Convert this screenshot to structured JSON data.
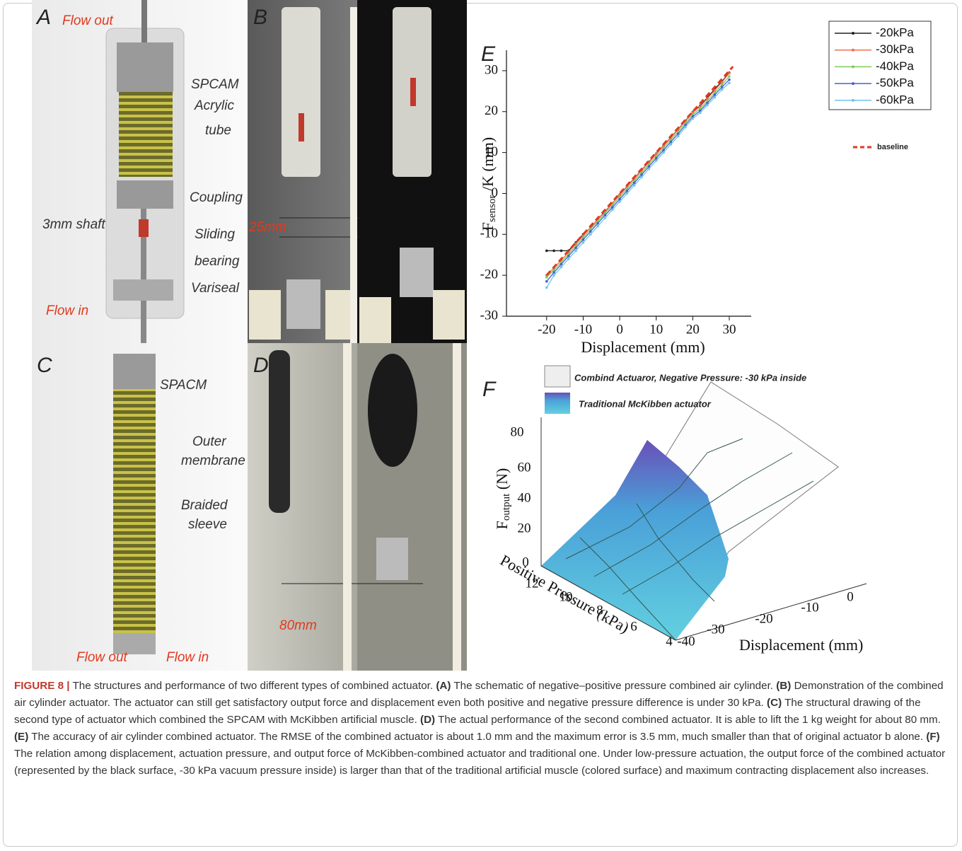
{
  "panel_a": {
    "letter": "A",
    "labels": [
      "Flow out",
      "SPCAM",
      "Acrylic",
      "tube",
      "Coupling",
      "3mm shaft",
      "Sliding",
      "bearing",
      "Variseal",
      "Flow in"
    ]
  },
  "panel_b": {
    "letter": "B",
    "labels": [
      "25mm"
    ]
  },
  "panel_c": {
    "letter": "C",
    "labels": [
      "SPACM",
      "Outer",
      "membrane",
      "Braided",
      "sleeve",
      "Flow out",
      "Flow in"
    ]
  },
  "panel_d": {
    "letter": "D",
    "labels": [
      "80mm"
    ]
  },
  "panel_e": {
    "letter": "E"
  },
  "chart_data": {
    "type": "line",
    "x": [
      -20,
      -18,
      -16,
      -14,
      -12,
      -10,
      -8,
      -6,
      -4,
      -2,
      0,
      2,
      4,
      6,
      8,
      10,
      12,
      14,
      16,
      18,
      20,
      22,
      24,
      26,
      28,
      30
    ],
    "series": [
      {
        "name": "-20kPa",
        "color": "#222222",
        "values": [
          -14,
          -14,
          -14,
          -14,
          -12,
          -10,
          -8.4,
          -6.3,
          -4.4,
          -2.4,
          -0.3,
          1.7,
          3.7,
          5.7,
          7.7,
          9.7,
          11.7,
          13.7,
          15.7,
          17.8,
          19.9,
          21.4,
          23.4,
          25.5,
          27.4,
          29.5
        ]
      },
      {
        "name": "-30kPa",
        "color": "#f07050",
        "values": [
          -20,
          -18.2,
          -16.3,
          -14.3,
          -12.3,
          -10.3,
          -8.3,
          -6.3,
          -4.3,
          -2.4,
          -0.4,
          1.6,
          3.6,
          5.6,
          7.6,
          9.6,
          11.6,
          13.6,
          15.6,
          17.7,
          19.8,
          21.2,
          23.2,
          25.2,
          27.2,
          29.4
        ]
      },
      {
        "name": "-40kPa",
        "color": "#7ecb5a",
        "values": [
          -20.5,
          -18.7,
          -16.8,
          -14.8,
          -12.8,
          -10.8,
          -8.8,
          -6.8,
          -4.8,
          -2.9,
          -0.9,
          1.1,
          3.1,
          5.1,
          7.1,
          9.1,
          11.1,
          13.1,
          15.1,
          17.2,
          19.3,
          20.7,
          22.6,
          24.6,
          26.6,
          28.6
        ]
      },
      {
        "name": "-50kPa",
        "color": "#4a5fd0",
        "values": [
          -21.5,
          -19.3,
          -17.3,
          -15.3,
          -13.3,
          -11.3,
          -9.3,
          -7.3,
          -5.3,
          -3.4,
          -1.4,
          0.6,
          2.6,
          4.6,
          6.6,
          8.6,
          10.6,
          12.6,
          14.6,
          16.7,
          18.8,
          20.2,
          22.1,
          24.1,
          26.0,
          27.8
        ]
      },
      {
        "name": "-60kPa",
        "color": "#6cc6ee",
        "values": [
          -23,
          -20,
          -18,
          -16,
          -14,
          -12,
          -10,
          -8,
          -6,
          -4,
          -2,
          0,
          2,
          4,
          6,
          8,
          10,
          12,
          14,
          16.2,
          18.3,
          19.7,
          21.6,
          23.5,
          25.4,
          27.0
        ]
      },
      {
        "name": "baseline",
        "color": "#e03a1e",
        "dashed": true,
        "x": [
          -20,
          31
        ],
        "values": [
          -20,
          31
        ]
      }
    ],
    "xlabel": "Displacement (mm)",
    "ylabel": {
      "main": "F",
      "sub": "sensor",
      "rest": " /K (mm)"
    },
    "xlim": [
      -31,
      36
    ],
    "ylim": [
      -30,
      35
    ],
    "xticks": [
      -20,
      -10,
      0,
      10,
      20,
      30
    ],
    "yticks": [
      -30,
      -20,
      -10,
      0,
      10,
      20,
      30
    ],
    "grid": false,
    "legend": "upper right"
  },
  "panel_f": {
    "letter": "F",
    "legend": [
      "Combind Actuaror, Negative Pressure: -30 kPa inside",
      "Traditional McKibben actuator"
    ],
    "z_label": {
      "main": "F",
      "sub": "output",
      "rest": " (N)"
    },
    "z_ticks": [
      "80",
      "60",
      "40",
      "20",
      "0"
    ],
    "pressure_label": "Positive Pressure (kPa)",
    "pressure_ticks": [
      "12",
      "10",
      "8",
      "6",
      "4"
    ],
    "displacement_label": "Displacement (mm)",
    "displacement_ticks": [
      "-40",
      "-30",
      "-20",
      "-10",
      "0"
    ]
  },
  "caption": {
    "label": "FIGURE 8 |",
    "intro": "The structures and performance of two different types of combined actuator.",
    "parts": [
      {
        "tag": "(A)",
        "text": "The schematic of negative–positive pressure combined air cylinder."
      },
      {
        "tag": "(B)",
        "text": "Demonstration of the combined air cylinder actuator. The actuator can still get satisfactory output force and displacement even both positive and negative pressure difference is under 30 kPa."
      },
      {
        "tag": "(C)",
        "text": "The structural drawing of the second type of actuator which combined the SPCAM with McKibben artificial muscle."
      },
      {
        "tag": "(D)",
        "text": "The actual performance of the second combined actuator. It is able to lift the 1 kg weight for about 80 mm."
      },
      {
        "tag": "(E)",
        "text": "The accuracy of air cylinder combined actuator. The RMSE of the combined actuator is about 1.0 mm and the maximum error is 3.5 mm, much smaller than that of original actuator b alone."
      },
      {
        "tag": "(F)",
        "text": "The relation among displacement, actuation pressure, and output force of McKibben-combined actuator and traditional one. Under low-pressure actuation, the output force of the combined actuator (represented by the black surface, -30 kPa vacuum pressure inside) is larger than that of the traditional artificial muscle (colored surface) and maximum contracting displacement also increases."
      }
    ]
  }
}
